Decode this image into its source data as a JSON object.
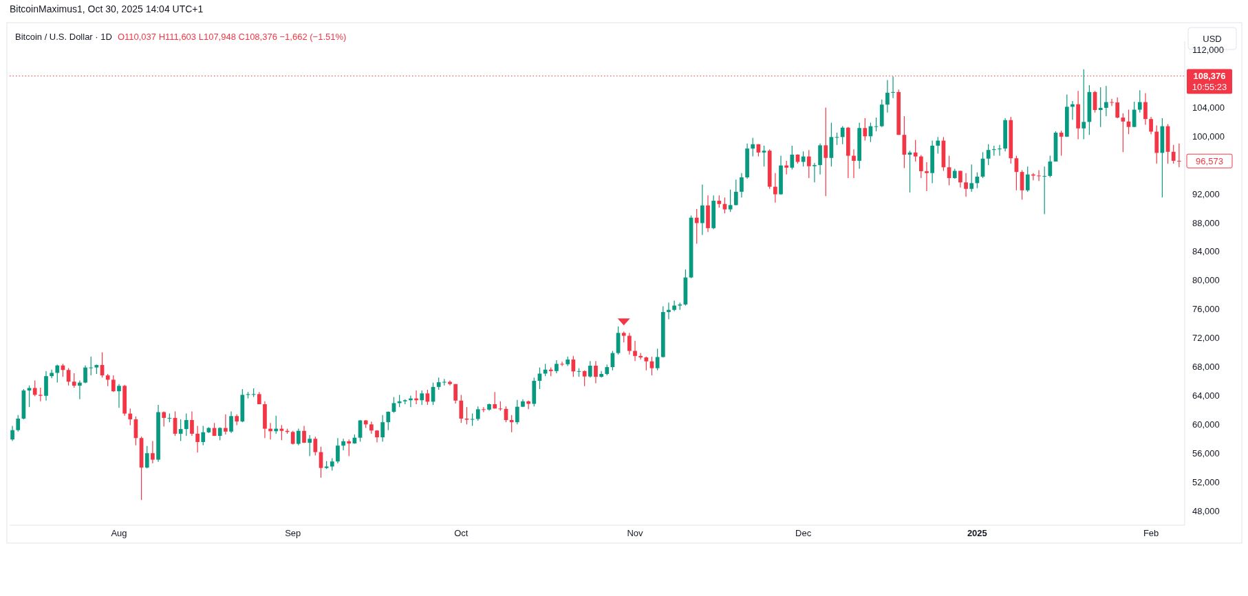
{
  "chart_data": {
    "type": "candlestick",
    "title": "Bitcoin / U.S. Dollar · 1D",
    "annotations": [
      "BitcoinMaximus1, Oct 30, 2025 14:04 UTC+1",
      "O110,037 H111,603 L107,948 C108,376 −1,662 (−1.51%)",
      "10:55:23",
      "96,573",
      "USD"
    ],
    "xlim": [
      "2024-07-12T12:00",
      "2025-02-07"
    ],
    "xticks": [
      {
        "value": "2024-08-01",
        "label": "Aug"
      },
      {
        "value": "2024-09-01",
        "label": "Sep"
      },
      {
        "value": "2024-10-01",
        "label": "Oct"
      },
      {
        "value": "2024-11-01",
        "label": "Nov"
      },
      {
        "value": "2024-12-01",
        "label": "Dec"
      },
      {
        "value": "2025-01-01",
        "label": "2025"
      },
      {
        "value": "2025-02-01",
        "label": "Feb"
      }
    ],
    "ylim": [
      46000,
      113200
    ],
    "yticks": [
      {
        "value": 48000,
        "label": "48,000"
      },
      {
        "value": 52000,
        "label": "52,000"
      },
      {
        "value": 56000,
        "label": "56,000"
      },
      {
        "value": 60000,
        "label": "60,000"
      },
      {
        "value": 64000,
        "label": "64,000"
      },
      {
        "value": 68000,
        "label": "68,000"
      },
      {
        "value": 72000,
        "label": "72,000"
      },
      {
        "value": 76000,
        "label": "76,000"
      },
      {
        "value": 80000,
        "label": "80,000"
      },
      {
        "value": 84000,
        "label": "84,000"
      },
      {
        "value": 88000,
        "label": "88,000"
      },
      {
        "value": 92000,
        "label": "92,000"
      },
      {
        "value": 100000,
        "label": "100,000"
      },
      {
        "value": 104000,
        "label": "104,000"
      },
      {
        "value": 112000,
        "label": "112,000"
      }
    ],
    "ref_lines": [
      {
        "axis": "y",
        "value": 108376,
        "label": "108,376",
        "color": "#f23645",
        "line_style": "dotted"
      }
    ],
    "grid": false,
    "x": [
      "2024-07-13",
      "2024-07-14",
      "2024-07-15",
      "2024-07-16",
      "2024-07-17",
      "2024-07-18",
      "2024-07-19",
      "2024-07-20",
      "2024-07-21",
      "2024-07-22",
      "2024-07-23",
      "2024-07-24",
      "2024-07-25",
      "2024-07-26",
      "2024-07-27",
      "2024-07-28",
      "2024-07-29",
      "2024-07-30",
      "2024-07-31",
      "2024-08-01",
      "2024-08-02",
      "2024-08-03",
      "2024-08-04",
      "2024-08-05",
      "2024-08-06",
      "2024-08-07",
      "2024-08-08",
      "2024-08-09",
      "2024-08-10",
      "2024-08-11",
      "2024-08-12",
      "2024-08-13",
      "2024-08-14",
      "2024-08-15",
      "2024-08-16",
      "2024-08-17",
      "2024-08-18",
      "2024-08-19",
      "2024-08-20",
      "2024-08-21",
      "2024-08-22",
      "2024-08-23",
      "2024-08-24",
      "2024-08-25",
      "2024-08-26",
      "2024-08-27",
      "2024-08-28",
      "2024-08-29",
      "2024-08-30",
      "2024-08-31",
      "2024-09-01",
      "2024-09-02",
      "2024-09-03",
      "2024-09-04",
      "2024-09-05",
      "2024-09-06",
      "2024-09-07",
      "2024-09-08",
      "2024-09-09",
      "2024-09-10",
      "2024-09-11",
      "2024-09-12",
      "2024-09-13",
      "2024-09-14",
      "2024-09-15",
      "2024-09-16",
      "2024-09-17",
      "2024-09-18",
      "2024-09-19",
      "2024-09-20",
      "2024-09-21",
      "2024-09-22",
      "2024-09-23",
      "2024-09-24",
      "2024-09-25",
      "2024-09-26",
      "2024-09-27",
      "2024-09-28",
      "2024-09-29",
      "2024-09-30",
      "2024-10-01",
      "2024-10-02",
      "2024-10-03",
      "2024-10-04",
      "2024-10-05",
      "2024-10-06",
      "2024-10-07",
      "2024-10-08",
      "2024-10-09",
      "2024-10-10",
      "2024-10-11",
      "2024-10-12",
      "2024-10-13",
      "2024-10-14",
      "2024-10-15",
      "2024-10-16",
      "2024-10-17",
      "2024-10-18",
      "2024-10-19",
      "2024-10-20",
      "2024-10-21",
      "2024-10-22",
      "2024-10-23",
      "2024-10-24",
      "2024-10-25",
      "2024-10-26",
      "2024-10-27",
      "2024-10-28",
      "2024-10-29",
      "2024-10-30",
      "2024-10-31",
      "2024-11-01",
      "2024-11-02",
      "2024-11-03",
      "2024-11-04",
      "2024-11-05",
      "2024-11-06",
      "2024-11-07",
      "2024-11-08",
      "2024-11-09",
      "2024-11-10",
      "2024-11-11",
      "2024-11-12",
      "2024-11-13",
      "2024-11-14",
      "2024-11-15",
      "2024-11-16",
      "2024-11-17",
      "2024-11-18",
      "2024-11-19",
      "2024-11-20",
      "2024-11-21",
      "2024-11-22",
      "2024-11-23",
      "2024-11-24",
      "2024-11-25",
      "2024-11-26",
      "2024-11-27",
      "2024-11-28",
      "2024-11-29",
      "2024-11-30",
      "2024-12-01",
      "2024-12-02",
      "2024-12-03",
      "2024-12-04",
      "2024-12-05",
      "2024-12-06",
      "2024-12-07",
      "2024-12-08",
      "2024-12-09",
      "2024-12-10",
      "2024-12-11",
      "2024-12-12",
      "2024-12-13",
      "2024-12-14",
      "2024-12-15",
      "2024-12-16",
      "2024-12-17",
      "2024-12-18",
      "2024-12-19",
      "2024-12-20",
      "2024-12-21",
      "2024-12-22",
      "2024-12-23",
      "2024-12-24",
      "2024-12-25",
      "2024-12-26",
      "2024-12-27",
      "2024-12-28",
      "2024-12-29",
      "2024-12-30",
      "2024-12-31",
      "2025-01-01",
      "2025-01-02",
      "2025-01-03",
      "2025-01-04",
      "2025-01-05",
      "2025-01-06",
      "2025-01-07",
      "2025-01-08",
      "2025-01-09",
      "2025-01-10",
      "2025-01-11",
      "2025-01-12",
      "2025-01-13",
      "2025-01-14",
      "2025-01-15",
      "2025-01-16",
      "2025-01-17",
      "2025-01-18",
      "2025-01-19",
      "2025-01-20",
      "2025-01-21",
      "2025-01-22",
      "2025-01-23",
      "2025-01-24",
      "2025-01-25",
      "2025-01-26",
      "2025-01-27",
      "2025-01-28",
      "2025-01-29",
      "2025-01-30",
      "2025-01-31",
      "2025-02-01",
      "2025-02-02",
      "2025-02-03",
      "2025-02-04",
      "2025-02-05",
      "2025-02-06"
    ],
    "ohlc": [
      [
        57900,
        59800,
        57700,
        59200
      ],
      [
        59200,
        61300,
        59000,
        60800
      ],
      [
        60800,
        64900,
        60700,
        64700
      ],
      [
        64700,
        65400,
        62400,
        65050
      ],
      [
        65050,
        66100,
        63900,
        64100
      ],
      [
        64100,
        65100,
        63200,
        63970
      ],
      [
        63970,
        67400,
        63300,
        66700
      ],
      [
        66700,
        67600,
        66400,
        67150
      ],
      [
        67150,
        68300,
        65800,
        68180
      ],
      [
        68180,
        68400,
        66600,
        67550
      ],
      [
        67550,
        67800,
        65400,
        65930
      ],
      [
        65930,
        67100,
        65100,
        65370
      ],
      [
        65370,
        66100,
        63500,
        65800
      ],
      [
        65800,
        68200,
        65700,
        67900
      ],
      [
        67900,
        69400,
        66800,
        67900
      ],
      [
        67900,
        68300,
        67000,
        68250
      ],
      [
        68250,
        70000,
        66500,
        66800
      ],
      [
        66800,
        67000,
        65300,
        66200
      ],
      [
        66200,
        66800,
        64500,
        64600
      ],
      [
        64600,
        65600,
        62300,
        65350
      ],
      [
        65350,
        65500,
        61200,
        61500
      ],
      [
        61500,
        62200,
        59900,
        60700
      ],
      [
        60700,
        61100,
        57100,
        58100
      ],
      [
        58100,
        58300,
        49500,
        54000
      ],
      [
        54000,
        57000,
        53900,
        56000
      ],
      [
        56000,
        57700,
        54600,
        55100
      ],
      [
        55100,
        62700,
        54800,
        61700
      ],
      [
        61700,
        61800,
        59700,
        60900
      ],
      [
        60900,
        61500,
        60300,
        60900
      ],
      [
        60900,
        61800,
        58400,
        58700
      ],
      [
        58700,
        60700,
        57700,
        59350
      ],
      [
        59350,
        61500,
        58400,
        60600
      ],
      [
        60600,
        61800,
        58400,
        58700
      ],
      [
        58700,
        59800,
        56100,
        57550
      ],
      [
        57550,
        59800,
        57100,
        58900
      ],
      [
        58900,
        59600,
        58800,
        59500
      ],
      [
        59500,
        60200,
        58400,
        58400
      ],
      [
        58400,
        59600,
        57800,
        59500
      ],
      [
        59500,
        61400,
        58600,
        59000
      ],
      [
        59000,
        61800,
        58800,
        61150
      ],
      [
        61150,
        61400,
        59900,
        60400
      ],
      [
        60400,
        64900,
        60300,
        64100
      ],
      [
        64100,
        64500,
        63600,
        64200
      ],
      [
        64200,
        65000,
        63800,
        64200
      ],
      [
        64200,
        64500,
        62800,
        62800
      ],
      [
        62800,
        63200,
        58100,
        59400
      ],
      [
        59400,
        60200,
        57900,
        59050
      ],
      [
        59050,
        61200,
        58700,
        59400
      ],
      [
        59400,
        59900,
        57800,
        59100
      ],
      [
        59100,
        59400,
        58700,
        58950
      ],
      [
        58950,
        59100,
        57200,
        57300
      ],
      [
        57300,
        59400,
        57100,
        59100
      ],
      [
        59100,
        59800,
        57400,
        57450
      ],
      [
        57450,
        58500,
        55600,
        58000
      ],
      [
        58000,
        58300,
        55700,
        56150
      ],
      [
        56150,
        56900,
        52600,
        53950
      ],
      [
        53950,
        54900,
        53800,
        54150
      ],
      [
        54150,
        55300,
        53600,
        54850
      ],
      [
        54850,
        58100,
        54600,
        57050
      ],
      [
        57050,
        58000,
        56400,
        57650
      ],
      [
        57650,
        57900,
        55600,
        57350
      ],
      [
        57350,
        58600,
        57300,
        58150
      ],
      [
        58150,
        60600,
        57600,
        60550
      ],
      [
        60550,
        60600,
        59500,
        60000
      ],
      [
        60000,
        60400,
        58700,
        59150
      ],
      [
        59150,
        59200,
        57500,
        58200
      ],
      [
        58200,
        61300,
        57600,
        60300
      ],
      [
        60300,
        61800,
        59200,
        61750
      ],
      [
        61750,
        63800,
        61600,
        62950
      ],
      [
        62950,
        64100,
        62400,
        63200
      ],
      [
        63200,
        63500,
        62800,
        63350
      ],
      [
        63350,
        64000,
        62400,
        63600
      ],
      [
        63600,
        64700,
        62800,
        63350
      ],
      [
        63350,
        64700,
        62700,
        64300
      ],
      [
        64300,
        64800,
        62700,
        63150
      ],
      [
        63150,
        65800,
        62700,
        65200
      ],
      [
        65200,
        66500,
        64800,
        65850
      ],
      [
        65850,
        66300,
        65400,
        65900
      ],
      [
        65900,
        66100,
        65400,
        65600
      ],
      [
        65600,
        65600,
        62900,
        63300
      ],
      [
        63300,
        64100,
        60200,
        60800
      ],
      [
        60800,
        62400,
        60000,
        60650
      ],
      [
        60650,
        61500,
        59800,
        60750
      ],
      [
        60750,
        62500,
        60500,
        62100
      ],
      [
        62100,
        62400,
        61700,
        62050
      ],
      [
        62050,
        62900,
        61900,
        62800
      ],
      [
        62800,
        64500,
        62200,
        62200
      ],
      [
        62200,
        63200,
        61900,
        62150
      ],
      [
        62150,
        62500,
        60300,
        60600
      ],
      [
        60600,
        61300,
        58900,
        60300
      ],
      [
        60300,
        63400,
        60000,
        62450
      ],
      [
        62450,
        63500,
        62400,
        63200
      ],
      [
        63200,
        63300,
        62100,
        62850
      ],
      [
        62850,
        66500,
        62500,
        66050
      ],
      [
        66050,
        67900,
        64900,
        67050
      ],
      [
        67050,
        68400,
        66700,
        67600
      ],
      [
        67600,
        67900,
        66700,
        67400
      ],
      [
        67400,
        68900,
        67100,
        68400
      ],
      [
        68400,
        68700,
        68100,
        68350
      ],
      [
        68350,
        69400,
        68100,
        69000
      ],
      [
        69000,
        69500,
        66600,
        67350
      ],
      [
        67350,
        67800,
        66600,
        67400
      ],
      [
        67400,
        67500,
        65300,
        66650
      ],
      [
        66650,
        68800,
        66500,
        68150
      ],
      [
        68150,
        68800,
        65700,
        66600
      ],
      [
        66600,
        67400,
        66500,
        67000
      ],
      [
        67000,
        68300,
        66800,
        67950
      ],
      [
        67950,
        70200,
        67500,
        69900
      ],
      [
        69900,
        73600,
        69700,
        72700
      ],
      [
        72700,
        72900,
        71400,
        72300
      ],
      [
        72300,
        72700,
        69700,
        70200
      ],
      [
        70200,
        71600,
        68800,
        69500
      ],
      [
        69500,
        69900,
        69000,
        69300
      ],
      [
        69300,
        69400,
        67500,
        68750
      ],
      [
        68750,
        69400,
        66800,
        67800
      ],
      [
        67800,
        70500,
        67500,
        69350
      ],
      [
        69350,
        76400,
        69300,
        75600
      ],
      [
        75600,
        76900,
        74600,
        75900
      ],
      [
        75900,
        77200,
        75700,
        76500
      ],
      [
        76500,
        76900,
        75900,
        76650
      ],
      [
        76650,
        81500,
        76500,
        80400
      ],
      [
        80400,
        89000,
        80300,
        88700
      ],
      [
        88700,
        89900,
        85100,
        87950
      ],
      [
        87950,
        93300,
        86300,
        90400
      ],
      [
        90400,
        91800,
        86700,
        87250
      ],
      [
        87250,
        91800,
        87100,
        91050
      ],
      [
        91050,
        91800,
        90100,
        90600
      ],
      [
        90600,
        91500,
        89300,
        89850
      ],
      [
        89850,
        92600,
        89500,
        90450
      ],
      [
        90450,
        94000,
        90400,
        92300
      ],
      [
        92300,
        94900,
        91500,
        94300
      ],
      [
        94300,
        99000,
        94100,
        98300
      ],
      [
        98300,
        99800,
        97200,
        98900
      ],
      [
        98900,
        98900,
        97200,
        97750
      ],
      [
        97750,
        98700,
        95800,
        98000
      ],
      [
        98000,
        98200,
        92700,
        93000
      ],
      [
        93000,
        94900,
        90800,
        91950
      ],
      [
        91950,
        97300,
        91900,
        95950
      ],
      [
        95950,
        96600,
        94700,
        95650
      ],
      [
        95650,
        98700,
        95400,
        97450
      ],
      [
        97450,
        97500,
        96200,
        96450
      ],
      [
        96450,
        97900,
        95800,
        97200
      ],
      [
        97200,
        98100,
        94200,
        95850
      ],
      [
        95850,
        96300,
        93600,
        96000
      ],
      [
        96000,
        99000,
        94700,
        98750
      ],
      [
        98750,
        104000,
        91700,
        97000
      ],
      [
        97000,
        101900,
        95800,
        99900
      ],
      [
        99900,
        100500,
        98800,
        99900
      ],
      [
        99900,
        101400,
        98900,
        101200
      ],
      [
        101200,
        101300,
        94200,
        97300
      ],
      [
        97300,
        98200,
        94200,
        96600
      ],
      [
        96600,
        101900,
        95500,
        101150
      ],
      [
        101150,
        102500,
        99400,
        100000
      ],
      [
        100000,
        101900,
        99200,
        101400
      ],
      [
        101400,
        102600,
        100700,
        101400
      ],
      [
        101400,
        105100,
        101300,
        104400
      ],
      [
        104400,
        107800,
        103300,
        106050
      ],
      [
        106050,
        108300,
        105300,
        106150
      ],
      [
        106150,
        106500,
        100200,
        100200
      ],
      [
        100200,
        102800,
        95600,
        97450
      ],
      [
        97450,
        98000,
        92200,
        97750
      ],
      [
        97750,
        99500,
        96500,
        97200
      ],
      [
        97200,
        97400,
        94200,
        95150
      ],
      [
        95150,
        96400,
        92400,
        94900
      ],
      [
        94900,
        99400,
        93500,
        98700
      ],
      [
        98700,
        99900,
        97600,
        99400
      ],
      [
        99400,
        99900,
        95200,
        95700
      ],
      [
        95700,
        97300,
        93200,
        94200
      ],
      [
        94200,
        95500,
        94100,
        95200
      ],
      [
        95200,
        95200,
        92900,
        93600
      ],
      [
        93600,
        94900,
        91600,
        92700
      ],
      [
        92700,
        96100,
        92300,
        93500
      ],
      [
        93500,
        95000,
        92800,
        94400
      ],
      [
        94400,
        97800,
        94200,
        96900
      ],
      [
        96900,
        98900,
        96000,
        98100
      ],
      [
        98100,
        98700,
        97300,
        98200
      ],
      [
        98200,
        98800,
        97300,
        98300
      ],
      [
        98300,
        102500,
        97900,
        102250
      ],
      [
        102250,
        102700,
        96200,
        96950
      ],
      [
        96950,
        97300,
        92500,
        95050
      ],
      [
        95050,
        95300,
        91200,
        92500
      ],
      [
        92500,
        95800,
        92300,
        94700
      ],
      [
        94700,
        94900,
        93900,
        94550
      ],
      [
        94550,
        95300,
        93800,
        94500
      ],
      [
        94500,
        95800,
        89200,
        94500
      ],
      [
        94500,
        97300,
        94300,
        96500
      ],
      [
        96500,
        100700,
        96500,
        100500
      ],
      [
        100500,
        100800,
        97300,
        99950
      ],
      [
        99950,
        105800,
        99900,
        104100
      ],
      [
        104100,
        104900,
        102300,
        104450
      ],
      [
        104450,
        106300,
        99600,
        101100
      ],
      [
        101100,
        109300,
        99600,
        102000
      ],
      [
        102000,
        107100,
        100200,
        106150
      ],
      [
        106150,
        106300,
        103300,
        103650
      ],
      [
        103650,
        106800,
        101300,
        103950
      ],
      [
        103950,
        107000,
        102800,
        104750
      ],
      [
        104750,
        105200,
        104200,
        104700
      ],
      [
        104700,
        105400,
        102500,
        102600
      ],
      [
        102600,
        103200,
        97800,
        102050
      ],
      [
        102050,
        103700,
        100300,
        101300
      ],
      [
        101300,
        104800,
        101300,
        103700
      ],
      [
        103700,
        106400,
        103300,
        104750
      ],
      [
        104750,
        106000,
        101600,
        102400
      ],
      [
        102400,
        102700,
        100300,
        100650
      ],
      [
        100650,
        101500,
        96200,
        97700
      ],
      [
        97700,
        102500,
        91500,
        101400
      ],
      [
        101400,
        101700,
        96200,
        97850
      ],
      [
        97850,
        98800,
        96200,
        96600
      ],
      [
        96600,
        99000,
        95700,
        96573
      ]
    ]
  }
}
